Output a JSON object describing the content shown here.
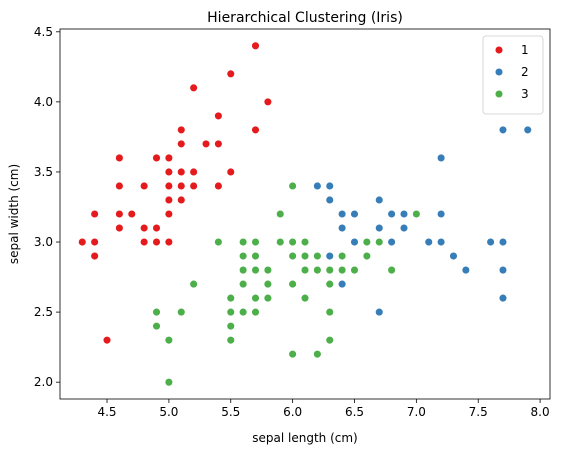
{
  "chart_data": {
    "type": "scatter",
    "title": "Hierarchical Clustering (Iris)",
    "xlabel": "sepal length (cm)",
    "ylabel": "sepal width (cm)",
    "xlim": [
      4.12,
      8.08
    ],
    "ylim": [
      1.88,
      4.52
    ],
    "xticks": [
      "4.5",
      "5.0",
      "5.5",
      "6.0",
      "6.5",
      "7.0",
      "7.5",
      "8.0"
    ],
    "yticks": [
      "2.0",
      "2.5",
      "3.0",
      "3.5",
      "4.0",
      "4.5"
    ],
    "grid": false,
    "legend": {
      "position": "top-right"
    },
    "series": [
      {
        "name": "1",
        "color": "#e41a1c",
        "points": [
          [
            4.3,
            3.0
          ],
          [
            4.4,
            3.0
          ],
          [
            4.4,
            3.2
          ],
          [
            4.4,
            2.9
          ],
          [
            4.5,
            2.3
          ],
          [
            4.6,
            3.6
          ],
          [
            4.6,
            3.4
          ],
          [
            4.6,
            3.2
          ],
          [
            4.6,
            3.1
          ],
          [
            4.7,
            3.2
          ],
          [
            4.8,
            3.4
          ],
          [
            4.8,
            3.1
          ],
          [
            4.8,
            3.0
          ],
          [
            4.9,
            3.6
          ],
          [
            4.9,
            3.1
          ],
          [
            4.9,
            3.0
          ],
          [
            5.0,
            3.6
          ],
          [
            5.0,
            3.5
          ],
          [
            5.0,
            3.4
          ],
          [
            5.0,
            3.3
          ],
          [
            5.0,
            3.2
          ],
          [
            5.0,
            3.0
          ],
          [
            5.1,
            3.8
          ],
          [
            5.1,
            3.7
          ],
          [
            5.1,
            3.5
          ],
          [
            5.1,
            3.4
          ],
          [
            5.1,
            3.3
          ],
          [
            5.2,
            4.1
          ],
          [
            5.2,
            3.5
          ],
          [
            5.2,
            3.4
          ],
          [
            5.3,
            3.7
          ],
          [
            5.4,
            3.9
          ],
          [
            5.4,
            3.7
          ],
          [
            5.4,
            3.4
          ],
          [
            5.5,
            4.2
          ],
          [
            5.5,
            3.5
          ],
          [
            5.7,
            4.4
          ],
          [
            5.7,
            3.8
          ],
          [
            5.8,
            4.0
          ]
        ]
      },
      {
        "name": "2",
        "color": "#377eb8",
        "points": [
          [
            6.2,
            3.4
          ],
          [
            6.3,
            3.4
          ],
          [
            6.3,
            3.3
          ],
          [
            6.3,
            2.9
          ],
          [
            6.4,
            3.2
          ],
          [
            6.4,
            3.1
          ],
          [
            6.4,
            2.8
          ],
          [
            6.4,
            2.7
          ],
          [
            6.5,
            3.2
          ],
          [
            6.5,
            3.0
          ],
          [
            6.7,
            3.3
          ],
          [
            6.7,
            3.1
          ],
          [
            6.7,
            3.0
          ],
          [
            6.7,
            2.5
          ],
          [
            6.8,
            3.2
          ],
          [
            6.8,
            3.0
          ],
          [
            6.9,
            3.2
          ],
          [
            6.9,
            3.1
          ],
          [
            7.1,
            3.0
          ],
          [
            7.2,
            3.6
          ],
          [
            7.2,
            3.2
          ],
          [
            7.2,
            3.0
          ],
          [
            7.3,
            2.9
          ],
          [
            7.4,
            2.8
          ],
          [
            7.6,
            3.0
          ],
          [
            7.7,
            3.8
          ],
          [
            7.7,
            3.0
          ],
          [
            7.7,
            2.8
          ],
          [
            7.7,
            2.6
          ],
          [
            7.9,
            3.8
          ]
        ]
      },
      {
        "name": "3",
        "color": "#4daf4a",
        "points": [
          [
            4.9,
            2.5
          ],
          [
            4.9,
            2.4
          ],
          [
            5.0,
            2.3
          ],
          [
            5.0,
            2.0
          ],
          [
            5.1,
            2.5
          ],
          [
            5.2,
            2.7
          ],
          [
            5.4,
            3.0
          ],
          [
            5.5,
            2.6
          ],
          [
            5.5,
            2.5
          ],
          [
            5.5,
            2.4
          ],
          [
            5.5,
            2.3
          ],
          [
            5.6,
            3.0
          ],
          [
            5.6,
            2.9
          ],
          [
            5.6,
            2.8
          ],
          [
            5.6,
            2.7
          ],
          [
            5.6,
            2.5
          ],
          [
            5.7,
            3.0
          ],
          [
            5.7,
            2.9
          ],
          [
            5.7,
            2.8
          ],
          [
            5.7,
            2.6
          ],
          [
            5.7,
            2.5
          ],
          [
            5.8,
            2.8
          ],
          [
            5.8,
            2.7
          ],
          [
            5.8,
            2.6
          ],
          [
            5.9,
            3.2
          ],
          [
            5.9,
            3.0
          ],
          [
            6.0,
            3.4
          ],
          [
            6.0,
            3.0
          ],
          [
            6.0,
            2.9
          ],
          [
            6.0,
            2.7
          ],
          [
            6.0,
            2.2
          ],
          [
            6.1,
            3.0
          ],
          [
            6.1,
            2.9
          ],
          [
            6.1,
            2.8
          ],
          [
            6.1,
            2.6
          ],
          [
            6.2,
            2.9
          ],
          [
            6.2,
            2.8
          ],
          [
            6.2,
            2.2
          ],
          [
            6.3,
            2.8
          ],
          [
            6.3,
            2.7
          ],
          [
            6.3,
            2.5
          ],
          [
            6.3,
            2.3
          ],
          [
            6.4,
            2.9
          ],
          [
            6.4,
            2.8
          ],
          [
            6.5,
            2.8
          ],
          [
            6.6,
            3.0
          ],
          [
            6.6,
            2.9
          ],
          [
            6.7,
            3.0
          ],
          [
            6.8,
            2.8
          ],
          [
            7.0,
            3.2
          ]
        ]
      }
    ]
  }
}
